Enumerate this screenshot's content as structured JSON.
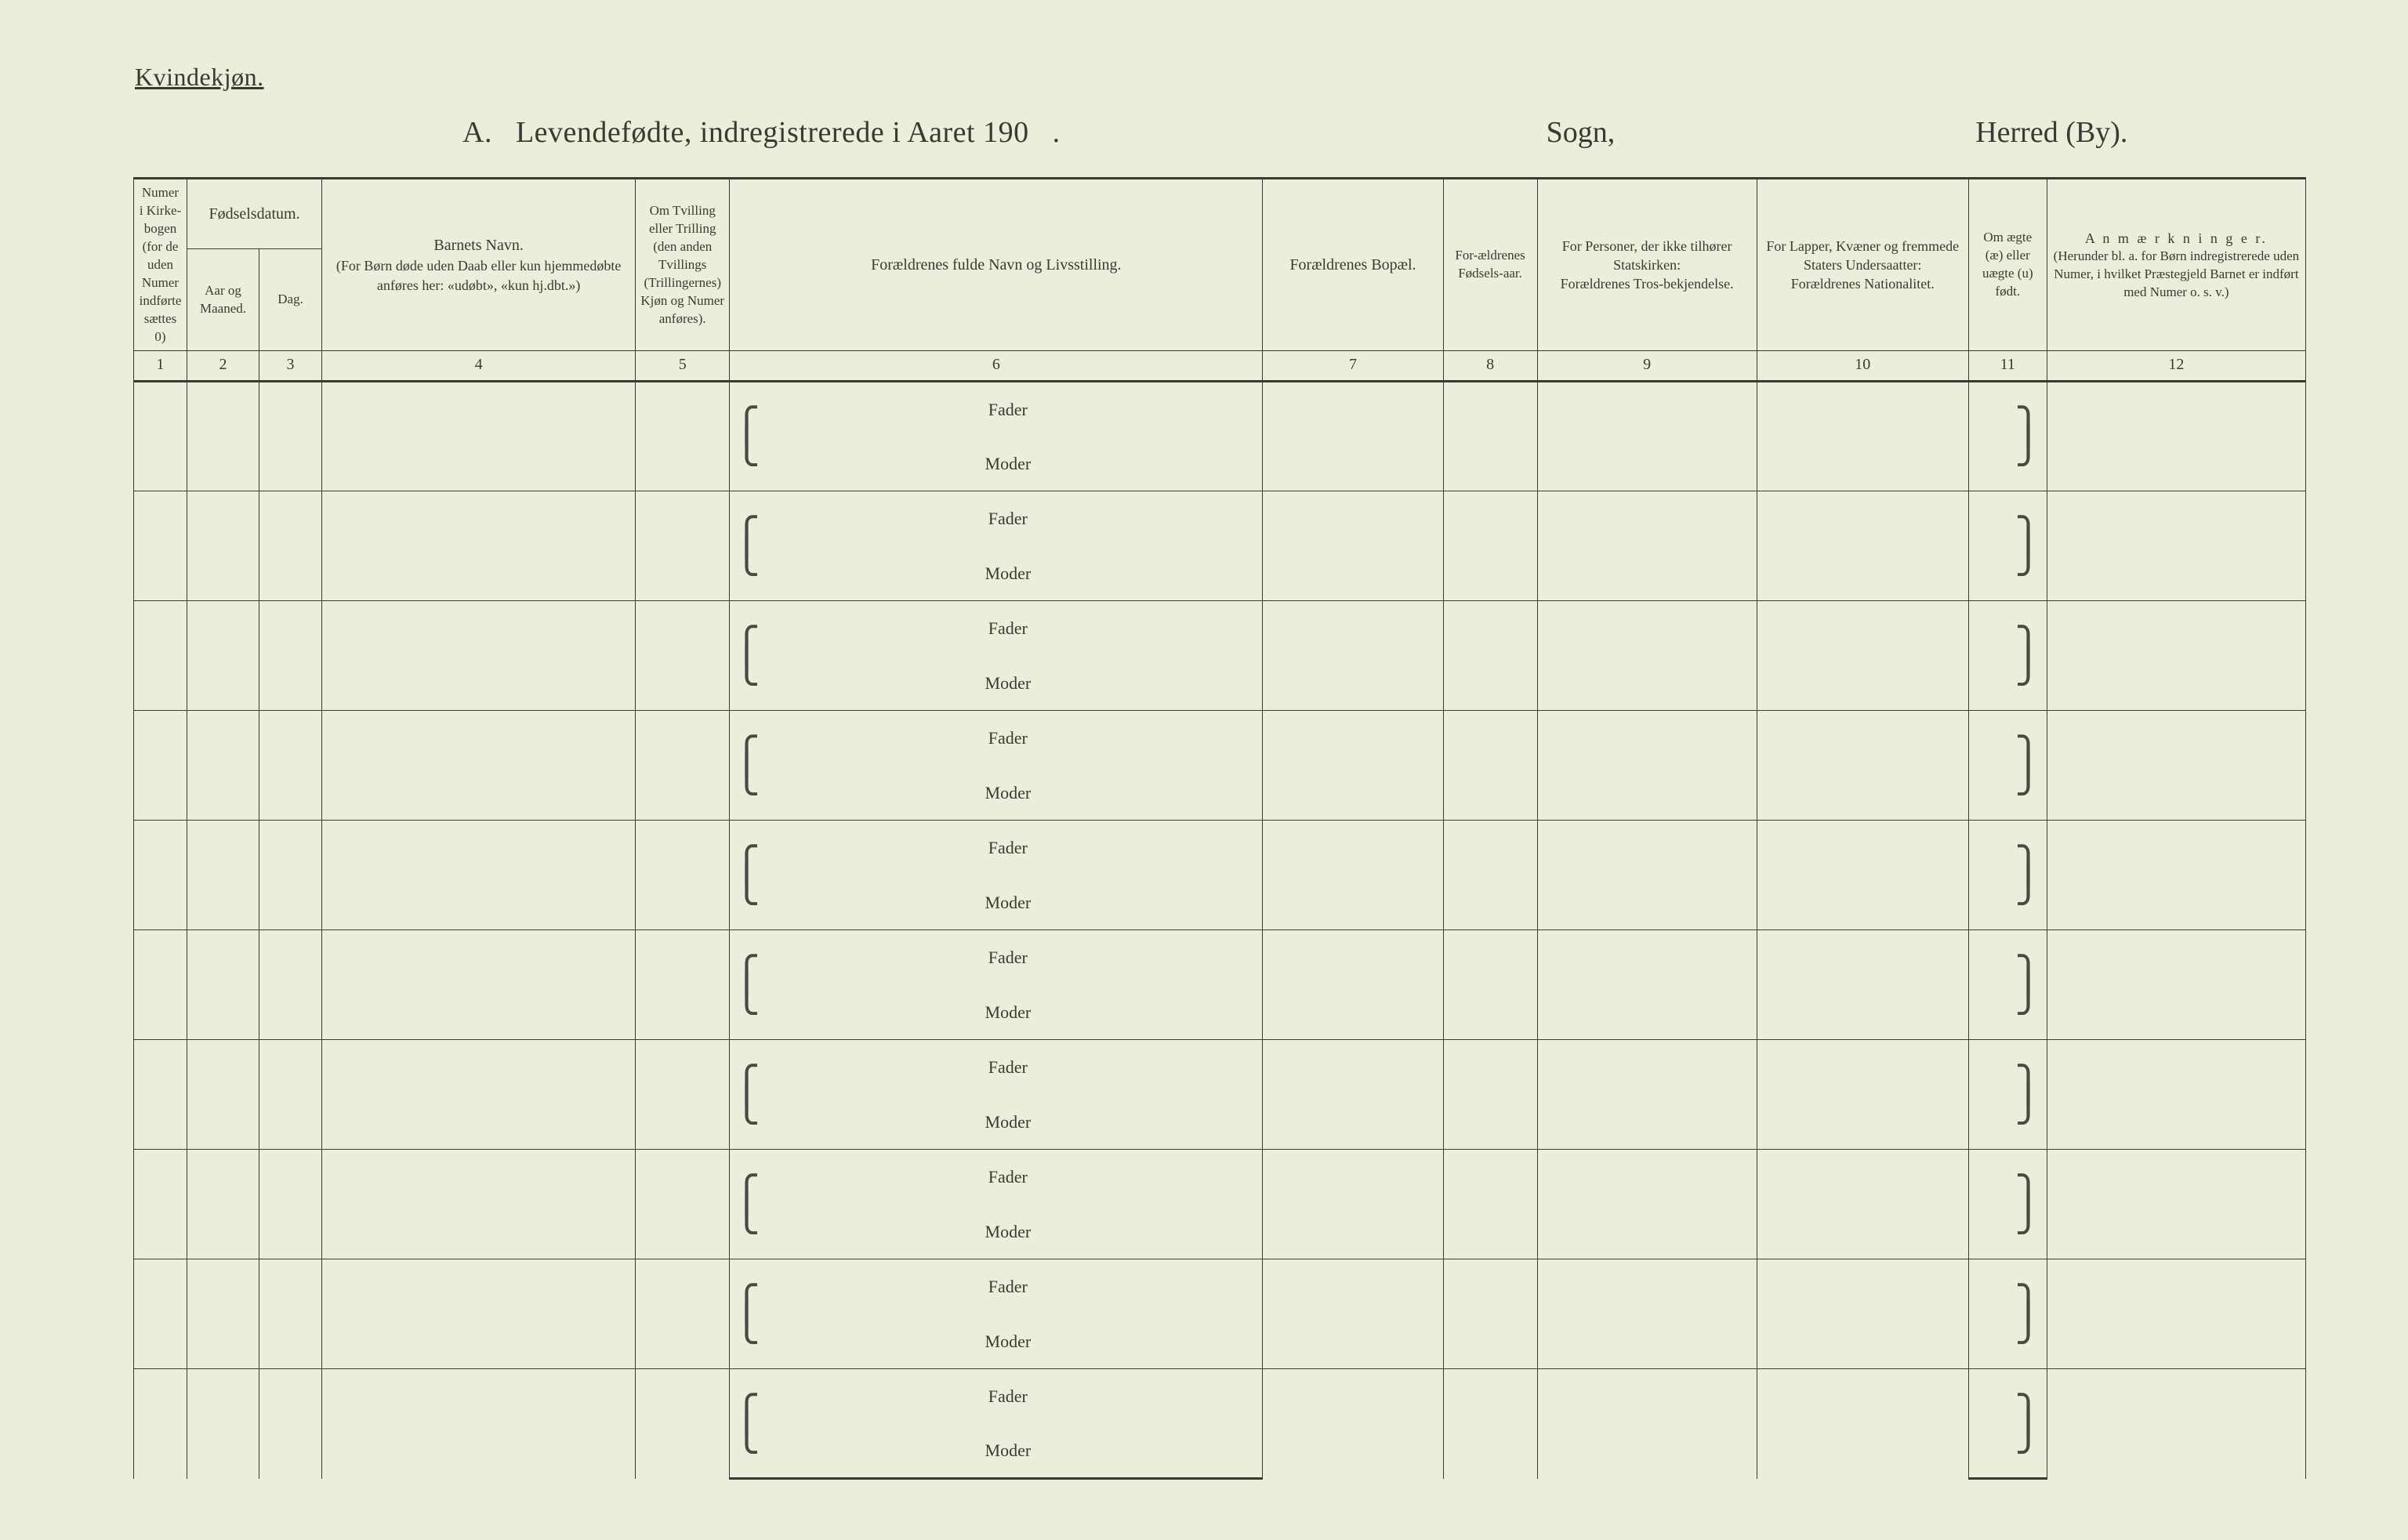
{
  "top_label": "Kvindekjøn.",
  "title": {
    "prefix": "A.",
    "main": "Levendefødte, indregistrerede i Aaret 190",
    "dot": ".",
    "sogn": "Sogn,",
    "herred": "Herred (By)."
  },
  "header": {
    "col1": "Numer i Kirke-bogen (for de uden Numer indførte sættes 0)",
    "col2_3_group": "Fødselsdatum.",
    "col2": "Aar og Maaned.",
    "col3": "Dag.",
    "col4_title": "Barnets Navn.",
    "col4_sub": "(For Børn døde uden Daab eller kun hjemmedøbte anføres her: «udøbt», «kun hj.dbt.»)",
    "col5": "Om Tvilling eller Trilling (den anden Tvillings (Trillingernes) Kjøn og Numer anføres).",
    "col6": "Forældrenes fulde Navn og Livsstilling.",
    "col7": "Forældrenes Bopæl.",
    "col8": "For-ældrenes Fødsels-aar.",
    "col9_title": "For Personer, der ikke tilhører Statskirken:",
    "col9_sub": "Forældrenes Tros-bekjendelse.",
    "col10_title": "For Lapper, Kvæner og fremmede Staters Undersaatter:",
    "col10_sub": "Forældrenes Nationalitet.",
    "col11": "Om ægte (æ) eller uægte (u) født.",
    "col12_title": "A n m æ r k n i n g e r.",
    "col12_sub": "(Herunder bl. a. for Børn indregistrerede uden Numer, i hvilket Præstegjeld Barnet er indført med Numer o. s. v.)"
  },
  "colnums": [
    "1",
    "2",
    "3",
    "4",
    "5",
    "6",
    "7",
    "8",
    "9",
    "10",
    "11",
    "12"
  ],
  "row_labels": {
    "fader": "Fader",
    "moder": "Moder"
  },
  "row_count": 10,
  "colors": {
    "page_bg": "#eceedb",
    "ink": "#3a3a35"
  }
}
